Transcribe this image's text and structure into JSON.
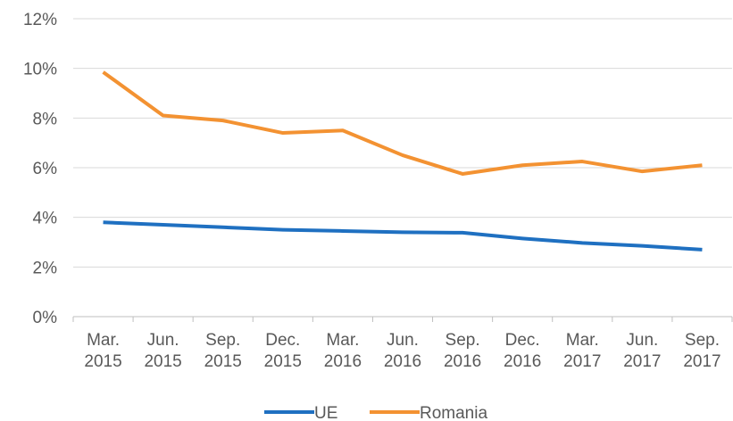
{
  "chart_data": {
    "type": "line",
    "categories": [
      "Mar. 2015",
      "Jun. 2015",
      "Sep. 2015",
      "Dec. 2015",
      "Mar. 2016",
      "Jun. 2016",
      "Sep. 2016",
      "Dec. 2016",
      "Mar. 2017",
      "Jun. 2017",
      "Sep. 2017"
    ],
    "series": [
      {
        "name": "UE",
        "color": "#1f70c1",
        "values": [
          3.8,
          3.7,
          3.6,
          3.5,
          3.45,
          3.4,
          3.38,
          3.15,
          2.97,
          2.85,
          2.7
        ]
      },
      {
        "name": "Romania",
        "color": "#f39232",
        "values": [
          9.85,
          8.1,
          7.9,
          7.4,
          7.5,
          6.5,
          5.75,
          6.1,
          6.25,
          5.85,
          6.1
        ]
      }
    ],
    "ylim": [
      0,
      12
    ],
    "yticks": [
      {
        "value": 0,
        "label": "0%"
      },
      {
        "value": 2,
        "label": "2%"
      },
      {
        "value": 4,
        "label": "4%"
      },
      {
        "value": 6,
        "label": "6%"
      },
      {
        "value": 8,
        "label": "8%"
      },
      {
        "value": 10,
        "label": "10%"
      },
      {
        "value": 12,
        "label": "12%"
      }
    ],
    "grid": true,
    "legend": "bottom"
  }
}
